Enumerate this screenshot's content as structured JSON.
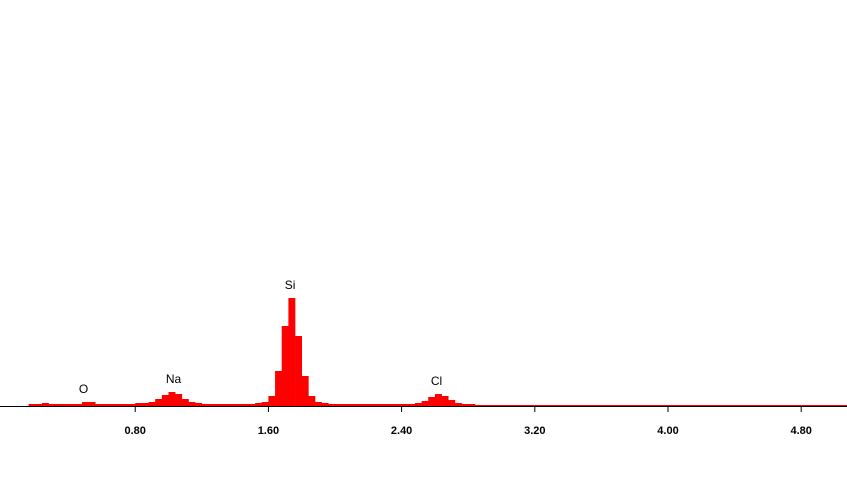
{
  "chart_data": {
    "type": "histogram",
    "color": "#ff0000",
    "bins": [
      0.16,
      0.2,
      0.24,
      0.28,
      0.32,
      0.36,
      0.4,
      0.44,
      0.48,
      0.52,
      0.56,
      0.6,
      0.64,
      0.68,
      0.72,
      0.76,
      0.8,
      0.84,
      0.88,
      0.92,
      0.96,
      1,
      1.04,
      1.08,
      1.12,
      1.16,
      1.2,
      1.24,
      1.28,
      1.32,
      1.36,
      1.4,
      1.44,
      1.48,
      1.52,
      1.56,
      1.6,
      1.64,
      1.68,
      1.72,
      1.76,
      1.8,
      1.84,
      1.88,
      1.92,
      1.96,
      2,
      2.04,
      2.08,
      2.12,
      2.16,
      2.2,
      2.24,
      2.28,
      2.32,
      2.36,
      2.4,
      2.44,
      2.48,
      2.52,
      2.56,
      2.6,
      2.64,
      2.68,
      2.72,
      2.76,
      2.8,
      2.84,
      2.88,
      2.92,
      2.96,
      3,
      3.04,
      3.08,
      3.12,
      3.16,
      3.2,
      3.24,
      3.28,
      3.32,
      3.36,
      3.4,
      3.44,
      3.48,
      3.52,
      3.56,
      3.6,
      3.64,
      3.68,
      3.72,
      3.76,
      3.8,
      3.84,
      3.88,
      3.92,
      3.96,
      4,
      4.04,
      4.08,
      4.12,
      4.16,
      4.2,
      4.24,
      4.28,
      4.32,
      4.36,
      4.4,
      4.44,
      4.48,
      4.52,
      4.56,
      4.6,
      4.64,
      4.68,
      4.72,
      4.76,
      4.8,
      4.84,
      4.88,
      4.92,
      4.96,
      5,
      5.04,
      5.08
    ],
    "values": [
      2,
      2,
      3,
      2,
      2,
      2,
      2,
      2,
      4,
      4,
      2,
      2,
      2,
      2,
      2,
      2,
      3,
      3,
      4,
      7,
      11,
      14,
      12,
      7,
      4,
      3,
      2,
      2,
      2,
      2,
      2,
      2,
      2,
      2,
      3,
      4,
      10,
      35,
      80,
      108,
      70,
      30,
      10,
      4,
      3,
      2,
      2,
      2,
      2,
      2,
      2,
      2,
      2,
      2,
      2,
      2,
      2,
      2,
      3,
      5,
      9,
      12,
      10,
      6,
      3,
      2,
      2,
      1,
      1,
      1,
      1,
      1,
      1,
      1,
      1,
      1,
      1,
      1,
      1,
      1,
      1,
      1,
      1,
      1,
      1,
      1,
      1,
      1,
      1,
      1,
      1,
      1,
      1,
      1,
      1,
      1,
      1,
      1,
      1,
      1,
      1,
      1,
      1,
      1,
      1,
      1,
      1,
      1,
      1,
      1,
      1,
      1,
      1,
      1,
      1,
      1,
      1,
      1,
      1,
      1,
      1,
      1,
      1
    ],
    "xlim": [
      0,
      5.075
    ],
    "ylim": [
      0,
      406
    ],
    "xticks": [
      {
        "value": 0.8,
        "label": "0.80"
      },
      {
        "value": 1.6,
        "label": "1.60"
      },
      {
        "value": 2.4,
        "label": "2.40"
      },
      {
        "value": 3.2,
        "label": "3.20"
      },
      {
        "value": 4,
        "label": "4.00"
      },
      {
        "value": 4.8,
        "label": "4.80"
      }
    ],
    "annotations": [
      {
        "text": "O",
        "x": 0.49
      },
      {
        "text": "Na",
        "x": 1.03
      },
      {
        "text": "Si",
        "x": 1.73
      },
      {
        "text": "Cl",
        "x": 2.61
      }
    ]
  }
}
